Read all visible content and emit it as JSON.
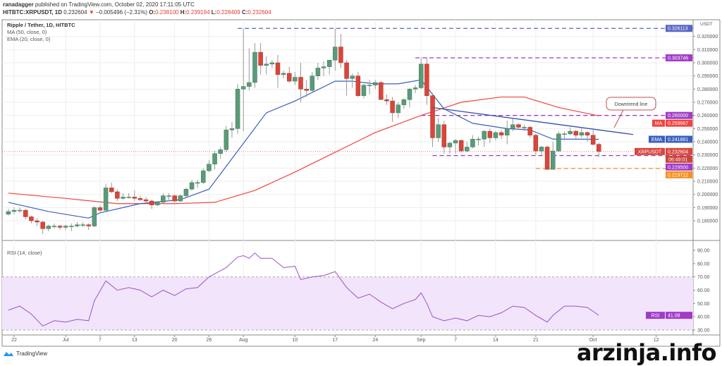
{
  "header": {
    "publisher": "ranadagger",
    "published_text": "published on TradingView.com, October 02, 2020 17:11:05 UTC",
    "symbol": "HITBTC:XRPUSDT, 1D",
    "last": "0.232604",
    "change": "−0.005496 (−2.31%)",
    "o_label": "O:",
    "o": "0.238100",
    "h_label": "H:",
    "h": "0.239194",
    "l_label": "L:",
    "l": "0.228409",
    "c_label": "C:",
    "c": "0.232604"
  },
  "legend": {
    "title": "Ripple / Tether, 1D, HITBTC",
    "ma": "MA (50, close, 0)",
    "ema": "EMA (20, close, 0)",
    "rsi": "RSI (14, close)"
  },
  "footer": {
    "logo_text": "TradingView",
    "watermark": "arzinja.info"
  },
  "colors": {
    "up": "#5b9a78",
    "down": "#d9463a",
    "ema": "#3a5fbf",
    "ma": "#f2433f",
    "level_blue": "#5866c7",
    "level_purple": "#a13cc7",
    "level_orange": "#f5901e",
    "rsi": "#9b52c7",
    "rsi_band": "#f2e4fb"
  },
  "chart_data": [
    {
      "type": "candlestick",
      "title": "Ripple / Tether, 1D, HITBTC",
      "currency": "USDT",
      "ylim": [
        0.165,
        0.335
      ],
      "y_ticks": [
        "0.180000",
        "0.190000",
        "0.200000",
        "0.210000",
        "0.220000",
        "0.230000",
        "0.240000",
        "0.250000",
        "0.260000",
        "0.270000",
        "0.280000",
        "0.290000",
        "0.300000",
        "0.310000",
        "0.320000"
      ],
      "x_ticks": [
        {
          "date": "2020-06-22",
          "label": "22"
        },
        {
          "date": "2020-07-01",
          "label": "Jul"
        },
        {
          "date": "2020-07-07",
          "label": "7"
        },
        {
          "date": "2020-07-13",
          "label": "13"
        },
        {
          "date": "2020-07-20",
          "label": "20"
        },
        {
          "date": "2020-07-26",
          "label": "26"
        },
        {
          "date": "2020-08-01",
          "label": "Aug"
        },
        {
          "date": "2020-08-10",
          "label": "10"
        },
        {
          "date": "2020-08-17",
          "label": "17"
        },
        {
          "date": "2020-08-24",
          "label": "24"
        },
        {
          "date": "2020-09-01",
          "label": "Sep"
        },
        {
          "date": "2020-09-07",
          "label": "7"
        },
        {
          "date": "2020-09-14",
          "label": "14"
        },
        {
          "date": "2020-09-21",
          "label": "21"
        },
        {
          "date": "2020-10-01",
          "label": "Oct"
        },
        {
          "date": "2020-10-12",
          "label": "12"
        }
      ],
      "start_date": "2020-06-21",
      "candles_ohlc": [
        [
          0.185,
          0.189,
          0.184,
          0.187
        ],
        [
          0.187,
          0.19,
          0.185,
          0.188
        ],
        [
          0.188,
          0.19,
          0.186,
          0.188
        ],
        [
          0.188,
          0.189,
          0.181,
          0.183
        ],
        [
          0.183,
          0.184,
          0.178,
          0.18
        ],
        [
          0.18,
          0.182,
          0.176,
          0.179
        ],
        [
          0.179,
          0.18,
          0.17,
          0.174
        ],
        [
          0.174,
          0.177,
          0.172,
          0.176
        ],
        [
          0.176,
          0.178,
          0.174,
          0.176
        ],
        [
          0.176,
          0.177,
          0.173,
          0.175
        ],
        [
          0.175,
          0.177,
          0.173,
          0.176
        ],
        [
          0.176,
          0.178,
          0.172,
          0.176
        ],
        [
          0.176,
          0.179,
          0.175,
          0.177
        ],
        [
          0.177,
          0.179,
          0.175,
          0.177
        ],
        [
          0.177,
          0.178,
          0.173,
          0.176
        ],
        [
          0.176,
          0.191,
          0.175,
          0.19
        ],
        [
          0.19,
          0.192,
          0.186,
          0.188
        ],
        [
          0.188,
          0.208,
          0.187,
          0.205
        ],
        [
          0.205,
          0.209,
          0.201,
          0.202
        ],
        [
          0.202,
          0.204,
          0.195,
          0.197
        ],
        [
          0.197,
          0.201,
          0.196,
          0.198
        ],
        [
          0.198,
          0.201,
          0.197,
          0.198
        ],
        [
          0.198,
          0.203,
          0.195,
          0.197
        ],
        [
          0.197,
          0.199,
          0.195,
          0.196
        ],
        [
          0.196,
          0.198,
          0.194,
          0.195
        ],
        [
          0.195,
          0.196,
          0.189,
          0.192
        ],
        [
          0.192,
          0.195,
          0.191,
          0.194
        ],
        [
          0.194,
          0.201,
          0.193,
          0.199
        ],
        [
          0.199,
          0.201,
          0.195,
          0.199
        ],
        [
          0.199,
          0.2,
          0.194,
          0.195
        ],
        [
          0.195,
          0.2,
          0.194,
          0.199
        ],
        [
          0.199,
          0.205,
          0.198,
          0.204
        ],
        [
          0.204,
          0.211,
          0.203,
          0.209
        ],
        [
          0.209,
          0.211,
          0.205,
          0.209
        ],
        [
          0.209,
          0.22,
          0.208,
          0.218
        ],
        [
          0.218,
          0.226,
          0.217,
          0.223
        ],
        [
          0.223,
          0.233,
          0.219,
          0.231
        ],
        [
          0.231,
          0.236,
          0.227,
          0.234
        ],
        [
          0.234,
          0.252,
          0.232,
          0.249
        ],
        [
          0.249,
          0.255,
          0.243,
          0.25
        ],
        [
          0.25,
          0.284,
          0.246,
          0.28
        ],
        [
          0.28,
          0.326,
          0.248,
          0.282
        ],
        [
          0.282,
          0.311,
          0.279,
          0.285
        ],
        [
          0.285,
          0.315,
          0.281,
          0.308
        ],
        [
          0.308,
          0.315,
          0.291,
          0.298
        ],
        [
          0.298,
          0.305,
          0.291,
          0.299
        ],
        [
          0.299,
          0.302,
          0.296,
          0.3
        ],
        [
          0.3,
          0.306,
          0.281,
          0.291
        ],
        [
          0.291,
          0.294,
          0.288,
          0.292
        ],
        [
          0.292,
          0.297,
          0.285,
          0.286
        ],
        [
          0.286,
          0.293,
          0.283,
          0.289
        ],
        [
          0.289,
          0.3,
          0.27,
          0.28
        ],
        [
          0.28,
          0.287,
          0.274,
          0.279
        ],
        [
          0.279,
          0.293,
          0.277,
          0.29
        ],
        [
          0.29,
          0.3,
          0.287,
          0.296
        ],
        [
          0.296,
          0.301,
          0.29,
          0.297
        ],
        [
          0.297,
          0.302,
          0.291,
          0.302
        ],
        [
          0.302,
          0.326,
          0.294,
          0.312
        ],
        [
          0.312,
          0.322,
          0.296,
          0.3
        ],
        [
          0.3,
          0.302,
          0.275,
          0.288
        ],
        [
          0.288,
          0.292,
          0.281,
          0.29
        ],
        [
          0.29,
          0.293,
          0.274,
          0.275
        ],
        [
          0.275,
          0.284,
          0.273,
          0.283
        ],
        [
          0.283,
          0.287,
          0.276,
          0.283
        ],
        [
          0.283,
          0.287,
          0.28,
          0.285
        ],
        [
          0.285,
          0.286,
          0.272,
          0.272
        ],
        [
          0.272,
          0.276,
          0.268,
          0.271
        ],
        [
          0.271,
          0.274,
          0.255,
          0.262
        ],
        [
          0.262,
          0.27,
          0.258,
          0.268
        ],
        [
          0.268,
          0.273,
          0.265,
          0.272
        ],
        [
          0.272,
          0.281,
          0.266,
          0.28
        ],
        [
          0.28,
          0.283,
          0.277,
          0.281
        ],
        [
          0.281,
          0.304,
          0.28,
          0.299
        ],
        [
          0.299,
          0.304,
          0.268,
          0.275
        ],
        [
          0.275,
          0.277,
          0.236,
          0.243
        ],
        [
          0.243,
          0.258,
          0.24,
          0.253
        ],
        [
          0.253,
          0.256,
          0.231,
          0.236
        ],
        [
          0.236,
          0.24,
          0.231,
          0.239
        ],
        [
          0.239,
          0.242,
          0.231,
          0.241
        ],
        [
          0.241,
          0.242,
          0.232,
          0.233
        ],
        [
          0.233,
          0.24,
          0.232,
          0.236
        ],
        [
          0.236,
          0.245,
          0.235,
          0.242
        ],
        [
          0.242,
          0.244,
          0.237,
          0.242
        ],
        [
          0.242,
          0.249,
          0.236,
          0.248
        ],
        [
          0.248,
          0.25,
          0.239,
          0.243
        ],
        [
          0.243,
          0.248,
          0.241,
          0.247
        ],
        [
          0.247,
          0.249,
          0.242,
          0.245
        ],
        [
          0.245,
          0.256,
          0.238,
          0.25
        ],
        [
          0.25,
          0.258,
          0.248,
          0.253
        ],
        [
          0.253,
          0.254,
          0.249,
          0.251
        ],
        [
          0.251,
          0.253,
          0.248,
          0.251
        ],
        [
          0.251,
          0.252,
          0.243,
          0.245
        ],
        [
          0.245,
          0.246,
          0.23,
          0.233
        ],
        [
          0.233,
          0.237,
          0.23,
          0.236
        ],
        [
          0.236,
          0.237,
          0.219,
          0.219
        ],
        [
          0.219,
          0.24,
          0.219,
          0.233
        ],
        [
          0.233,
          0.248,
          0.232,
          0.246
        ],
        [
          0.246,
          0.248,
          0.241,
          0.246
        ],
        [
          0.246,
          0.251,
          0.245,
          0.248
        ],
        [
          0.248,
          0.249,
          0.242,
          0.245
        ],
        [
          0.245,
          0.25,
          0.243,
          0.247
        ],
        [
          0.247,
          0.248,
          0.24,
          0.245
        ],
        [
          0.245,
          0.249,
          0.237,
          0.238
        ],
        [
          0.2381,
          0.239194,
          0.228409,
          0.232604
        ]
      ],
      "ema20_points": [
        [
          "2020-06-21",
          0.194
        ],
        [
          "2020-06-28",
          0.187
        ],
        [
          "2020-07-05",
          0.182
        ],
        [
          "2020-07-07",
          0.186
        ],
        [
          "2020-07-14",
          0.193
        ],
        [
          "2020-07-21",
          0.196
        ],
        [
          "2020-07-26",
          0.204
        ],
        [
          "2020-07-31",
          0.233
        ],
        [
          "2020-08-05",
          0.262
        ],
        [
          "2020-08-10",
          0.271
        ],
        [
          "2020-08-17",
          0.286
        ],
        [
          "2020-08-20",
          0.286
        ],
        [
          "2020-08-24",
          0.284
        ],
        [
          "2020-08-28",
          0.284
        ],
        [
          "2020-09-01",
          0.287
        ],
        [
          "2020-09-05",
          0.265
        ],
        [
          "2020-09-10",
          0.254
        ],
        [
          "2020-09-16",
          0.25
        ],
        [
          "2020-09-20",
          0.249
        ],
        [
          "2020-09-24",
          0.242
        ],
        [
          "2020-10-02",
          0.241881
        ]
      ],
      "ma50_points": [
        [
          "2020-06-21",
          0.201
        ],
        [
          "2020-07-01",
          0.197
        ],
        [
          "2020-07-10",
          0.193
        ],
        [
          "2020-07-20",
          0.193
        ],
        [
          "2020-07-27",
          0.194
        ],
        [
          "2020-08-03",
          0.203
        ],
        [
          "2020-08-10",
          0.217
        ],
        [
          "2020-08-17",
          0.232
        ],
        [
          "2020-08-24",
          0.247
        ],
        [
          "2020-09-01",
          0.26
        ],
        [
          "2020-09-08",
          0.27
        ],
        [
          "2020-09-15",
          0.274
        ],
        [
          "2020-09-19",
          0.274
        ],
        [
          "2020-09-25",
          0.266
        ],
        [
          "2020-10-02",
          0.259667
        ]
      ],
      "levels": [
        {
          "value": 0.326113,
          "label": "0.326113",
          "from": "2020-07-31",
          "color": "level_blue"
        },
        {
          "value": 0.303746,
          "label": "0.303746",
          "from": "2020-08-31",
          "color": "level_purple"
        },
        {
          "value": 0.26,
          "label": "0.260000",
          "from": "2020-09-01",
          "color": "level_purple"
        },
        {
          "value": 0.2295,
          "label": "0.229500",
          "from": "2020-09-03",
          "color": "level_purple"
        },
        {
          "value": 0.219712,
          "label": "0.219712",
          "from": "2020-09-21",
          "color": "level_orange"
        }
      ],
      "trendline": {
        "label": "Downtrend line",
        "from": [
          "2020-09-03",
          0.266
        ],
        "to": [
          "2020-10-08",
          0.2455
        ]
      },
      "price_badges": [
        {
          "tag": "MA",
          "value": "0.259667",
          "num": 0.259667,
          "color": "ma"
        },
        {
          "tag": "EMA",
          "value": "0.241881",
          "num": 0.241881,
          "color": "ema"
        },
        {
          "tag": "XRPUSDT",
          "value": "0.232604",
          "num": 0.232604,
          "color": "down",
          "countdown": "06:49:01"
        }
      ]
    },
    {
      "type": "line",
      "title": "RSI (14, close)",
      "ylim": [
        25,
        93
      ],
      "y_ticks": [
        "30.00",
        "40.00",
        "50.00",
        "60.00",
        "70.00",
        "80.00",
        "90.00"
      ],
      "band": [
        30,
        70
      ],
      "badge": {
        "tag": "RSI",
        "value": "41.08"
      },
      "points": [
        [
          "2020-06-21",
          45
        ],
        [
          "2020-06-23",
          48
        ],
        [
          "2020-06-25",
          42
        ],
        [
          "2020-06-27",
          33
        ],
        [
          "2020-06-29",
          37
        ],
        [
          "2020-07-01",
          36
        ],
        [
          "2020-07-03",
          38
        ],
        [
          "2020-07-05",
          37
        ],
        [
          "2020-07-06",
          52
        ],
        [
          "2020-07-08",
          67
        ],
        [
          "2020-07-10",
          60
        ],
        [
          "2020-07-12",
          62
        ],
        [
          "2020-07-14",
          60
        ],
        [
          "2020-07-16",
          55
        ],
        [
          "2020-07-18",
          60
        ],
        [
          "2020-07-20",
          56
        ],
        [
          "2020-07-22",
          61
        ],
        [
          "2020-07-24",
          62
        ],
        [
          "2020-07-26",
          70
        ],
        [
          "2020-07-29",
          77
        ],
        [
          "2020-07-31",
          85
        ],
        [
          "2020-08-01",
          86
        ],
        [
          "2020-08-02",
          84
        ],
        [
          "2020-08-03",
          88
        ],
        [
          "2020-08-04",
          84
        ],
        [
          "2020-08-06",
          84
        ],
        [
          "2020-08-08",
          77
        ],
        [
          "2020-08-10",
          78
        ],
        [
          "2020-08-11",
          68
        ],
        [
          "2020-08-13",
          70
        ],
        [
          "2020-08-15",
          71
        ],
        [
          "2020-08-17",
          74
        ],
        [
          "2020-08-19",
          62
        ],
        [
          "2020-08-21",
          54
        ],
        [
          "2020-08-23",
          57
        ],
        [
          "2020-08-25",
          51
        ],
        [
          "2020-08-27",
          46
        ],
        [
          "2020-08-29",
          50
        ],
        [
          "2020-08-31",
          53
        ],
        [
          "2020-09-01",
          58
        ],
        [
          "2020-09-02",
          50
        ],
        [
          "2020-09-03",
          40
        ],
        [
          "2020-09-05",
          37
        ],
        [
          "2020-09-07",
          39
        ],
        [
          "2020-09-09",
          37
        ],
        [
          "2020-09-11",
          41
        ],
        [
          "2020-09-13",
          40
        ],
        [
          "2020-09-15",
          43
        ],
        [
          "2020-09-17",
          48
        ],
        [
          "2020-09-19",
          47
        ],
        [
          "2020-09-21",
          41
        ],
        [
          "2020-09-23",
          36
        ],
        [
          "2020-09-24",
          41
        ],
        [
          "2020-09-26",
          48
        ],
        [
          "2020-09-28",
          48
        ],
        [
          "2020-09-30",
          47
        ],
        [
          "2020-10-02",
          41.08
        ]
      ]
    }
  ]
}
